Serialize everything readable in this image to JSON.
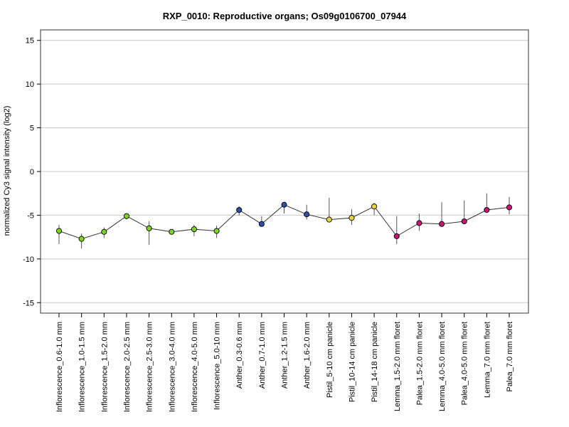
{
  "chart_data": {
    "type": "line",
    "title": "RXP_0010: Reproductive organs; Os09g0106700_07944",
    "xlabel": "",
    "ylabel": "normalized Cy3 signal intensity (log2)",
    "ylim": [
      -16.2,
      16.2
    ],
    "yticks": [
      -15,
      -10,
      -5,
      0,
      5,
      10,
      15
    ],
    "grid": true,
    "categories": [
      "Inflorescence_0.6-1.0 mm",
      "Inflorescence_1.0-1.5 mm",
      "Inflorescence_1.5-2.0 mm",
      "Inflorescence_2.0-2.5 mm",
      "Inflorescence_2.5-3.0 mm",
      "Inflorescence_3.0-4.0 mm",
      "Inflorescence_4.0-5.0 mm",
      "Inflorescence_5.0-10 mm",
      "Anther_0.3-0.6 mm",
      "Anther_0.7-1.0 mm",
      "Anther_1.2-1.5 mm",
      "Anther_1.6-2.0 mm",
      "Pistil_5-10 cm panicle",
      "Pistil_10-14 cm panicle",
      "Pistil_14-18 cm panicle",
      "Lemma_1.5-2.0 mm floret",
      "Palea_1.5-2.0 mm floret",
      "Lemma_4.0-5.0 mm floret",
      "Palea_4.0-5.0 mm floret",
      "Lemma_7.0 mm floret",
      "Palea_7.0 mm floret"
    ],
    "values": [
      -6.8,
      -7.7,
      -6.9,
      -5.1,
      -6.5,
      -6.9,
      -6.6,
      -6.8,
      -4.4,
      -6.0,
      -3.8,
      -4.9,
      -5.5,
      -5.3,
      -4.0,
      -7.4,
      -5.9,
      -6.0,
      -5.7,
      -4.4,
      -4.1
    ],
    "error_low": [
      -8.3,
      -8.8,
      -7.6,
      -5.5,
      -8.4,
      -7.1,
      -7.4,
      -7.6,
      -5.0,
      -6.2,
      -4.8,
      -5.5,
      -5.7,
      -6.1,
      -5.0,
      -8.3,
      -6.8,
      -6.2,
      -5.9,
      -4.7,
      -4.9
    ],
    "error_high": [
      -6.1,
      -7.1,
      -6.4,
      -4.8,
      -5.7,
      -6.7,
      -6.1,
      -6.2,
      -4.0,
      -5.1,
      -3.5,
      -3.8,
      -3.0,
      -4.3,
      -3.6,
      -5.1,
      -4.8,
      -3.5,
      -3.3,
      -2.5,
      -2.9
    ],
    "point_colors": [
      "#7FD31F",
      "#7FD31F",
      "#7FD31F",
      "#7FD31F",
      "#7FD31F",
      "#7FD31F",
      "#7FD31F",
      "#7FD31F",
      "#2C4FA8",
      "#2C4FA8",
      "#2C4FA8",
      "#2C4FA8",
      "#E8D53A",
      "#E8D53A",
      "#E8D53A",
      "#C81478",
      "#C81478",
      "#C81478",
      "#C81478",
      "#C81478",
      "#C81478"
    ],
    "line_color": "#333333",
    "grid_color": "#c8c8c8"
  }
}
